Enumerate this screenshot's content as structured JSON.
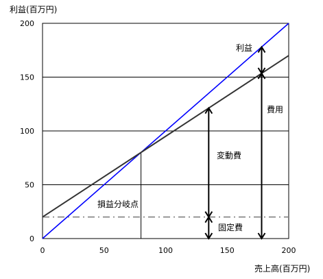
{
  "chart_data": {
    "type": "line",
    "ylabel": "利益(百万円)",
    "xlabel": "売上高(百万円)",
    "xlim": [
      0,
      200
    ],
    "ylim": [
      0,
      200
    ],
    "x_ticks": [
      0,
      50,
      100,
      150,
      200
    ],
    "y_ticks": [
      0,
      50,
      100,
      150,
      200
    ],
    "grid": "horizontal",
    "series": [
      {
        "key": "sales",
        "x": [
          0,
          200
        ],
        "y": [
          0,
          200
        ],
        "color": "#0000ff"
      },
      {
        "key": "cost",
        "x": [
          0,
          200
        ],
        "y": [
          20,
          170
        ],
        "color": "#333333"
      },
      {
        "key": "fixed",
        "x": [
          0,
          200
        ],
        "y": [
          20,
          20
        ],
        "color": "#808080"
      }
    ],
    "break_even": {
      "x": 80,
      "y": 80,
      "label": "損益分岐点"
    },
    "annotations": {
      "profit": "利益",
      "cost": "費用",
      "variable_cost": "変動費",
      "fixed_cost": "固定費"
    },
    "arrows": {
      "variable_x": 135,
      "total_x": 178
    }
  }
}
